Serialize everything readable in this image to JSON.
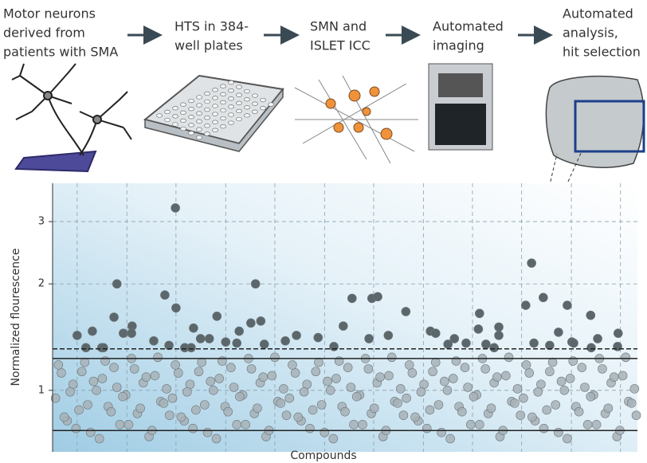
{
  "workflow": {
    "steps": [
      {
        "lines": [
          "Motor neurons",
          "derived from",
          "patients with SMA"
        ]
      },
      {
        "lines": [
          "HTS in 384-",
          "well plates"
        ]
      },
      {
        "lines": [
          "SMN and",
          "ISLET ICC"
        ]
      },
      {
        "lines": [
          "Automated",
          "imaging"
        ]
      },
      {
        "lines": [
          "Automated",
          "analysis,",
          "hit selection"
        ]
      }
    ]
  },
  "chart_data": {
    "type": "scatter",
    "x_label": "Compounds",
    "y_label": "Normalized flourescence",
    "xlim": [
      0,
      100
    ],
    "ylim": [
      0.67,
      3.85
    ],
    "log_y": true,
    "grid": true,
    "xticks": [
      4.2,
      12.7,
      21.1,
      29.6,
      38.0,
      46.5,
      54.9,
      63.4,
      71.8,
      80.2,
      88.7,
      97.1
    ],
    "yticks": [
      1,
      2,
      3
    ],
    "reference_lines": [
      {
        "value": 1.31,
        "style": "dashed"
      },
      {
        "value": 1.23,
        "style": "solid"
      },
      {
        "value": 0.77,
        "style": "solid"
      }
    ],
    "series": [
      {
        "color": "#a7b2b7",
        "x": [
          0.5,
          1.5,
          2.5,
          3.5,
          4.5,
          5.5,
          6.5,
          7.5,
          8.5,
          9.5,
          10.5,
          11.5,
          12.5,
          13.5,
          14.5,
          15.5,
          16.5,
          17.5,
          18.5,
          19.5,
          20.5,
          21.5,
          22.5,
          23.5,
          24.5,
          25.5,
          26.5,
          27.5,
          28.5,
          29.5,
          30.5,
          31.5,
          32.5,
          33.5,
          34.5,
          35.5,
          36.5,
          37.5,
          38.5,
          39.5,
          40.5,
          41.5,
          42.5,
          43.5,
          44.5,
          45.5,
          46.5,
          47.5,
          48.5,
          49.5,
          50.5,
          51.5,
          52.5,
          53.5,
          54.5,
          55.5,
          56.5,
          57.5,
          58.5,
          59.5,
          60.5,
          61.5,
          62.5,
          63.5,
          64.5,
          65.5,
          66.5,
          67.5,
          68.5,
          69.5,
          70.5,
          71.5,
          72.5,
          73.5,
          74.5,
          75.5,
          76.5,
          77.5,
          78.5,
          79.5,
          80.5,
          81.5,
          82.5,
          83.5,
          84.5,
          85.5,
          86.5,
          87.5,
          88.5,
          89.5,
          90.5,
          91.5,
          92.5,
          93.5,
          94.5,
          95.5,
          96.5,
          97.5,
          98.5,
          99.5,
          1,
          2,
          3,
          4,
          5,
          6,
          7,
          8,
          9,
          10,
          11,
          12,
          13,
          14,
          15,
          16,
          17,
          18,
          19,
          20,
          21,
          22,
          23,
          24,
          25,
          26,
          27,
          28,
          29,
          30,
          31,
          32,
          33,
          34,
          35,
          36,
          37,
          38,
          39,
          40,
          41,
          42,
          43,
          44,
          45,
          46,
          47,
          48,
          49,
          50,
          51,
          52,
          53,
          54,
          55,
          56,
          57,
          58,
          59,
          60,
          61,
          62,
          63,
          64,
          65,
          66,
          67,
          68,
          69,
          70,
          71,
          72,
          73,
          74,
          75,
          76,
          77,
          78,
          79,
          80,
          81,
          82,
          83,
          84,
          85,
          86,
          87,
          88,
          89,
          90,
          91,
          92,
          93,
          94,
          95,
          96,
          97,
          98,
          99,
          99.8
        ],
        "values": [
          0.95,
          1.12,
          0.82,
          1.04,
          0.88,
          1.2,
          0.76,
          1.0,
          1.08,
          0.9,
          1.16,
          0.8,
          0.97,
          1.23,
          0.86,
          1.05,
          0.74,
          1.1,
          0.93,
          1.01,
          0.95,
          1.12,
          0.82,
          1.04,
          0.88,
          1.2,
          0.76,
          1.0,
          1.08,
          0.9,
          1.16,
          0.8,
          0.97,
          1.23,
          0.86,
          1.05,
          0.74,
          1.1,
          0.93,
          1.01,
          0.95,
          1.12,
          0.82,
          1.04,
          0.88,
          1.2,
          0.76,
          1.0,
          1.08,
          0.9,
          1.16,
          0.8,
          0.97,
          1.23,
          0.86,
          1.05,
          0.74,
          1.1,
          0.93,
          1.01,
          0.95,
          1.12,
          0.82,
          1.04,
          0.88,
          1.2,
          0.76,
          1.0,
          1.08,
          0.9,
          1.16,
          0.8,
          0.97,
          1.23,
          0.86,
          1.05,
          0.74,
          1.1,
          0.93,
          1.01,
          0.95,
          1.12,
          0.82,
          1.04,
          0.88,
          1.2,
          0.76,
          1.0,
          1.08,
          0.9,
          1.16,
          0.8,
          0.97,
          1.23,
          0.86,
          1.05,
          0.74,
          1.1,
          0.93,
          1.01,
          1.18,
          0.84,
          0.99,
          0.78,
          1.13,
          0.91,
          1.06,
          0.73,
          1.21,
          0.87,
          1.02,
          0.96,
          0.8,
          1.15,
          0.89,
          1.09,
          0.77,
          1.24,
          0.92,
          0.85,
          1.18,
          0.84,
          0.99,
          0.78,
          1.13,
          0.91,
          1.06,
          0.73,
          1.21,
          0.87,
          1.02,
          0.96,
          0.8,
          1.15,
          0.89,
          1.09,
          0.77,
          1.24,
          0.92,
          0.85,
          1.18,
          0.84,
          0.99,
          0.78,
          1.13,
          0.91,
          1.06,
          0.73,
          1.21,
          0.87,
          1.02,
          0.96,
          0.8,
          1.15,
          0.89,
          1.09,
          0.77,
          1.24,
          0.92,
          0.85,
          1.18,
          0.84,
          0.99,
          0.78,
          1.13,
          0.91,
          1.06,
          0.73,
          1.21,
          0.87,
          1.02,
          0.96,
          0.8,
          1.15,
          0.89,
          1.09,
          0.77,
          1.24,
          0.92,
          0.85,
          1.18,
          0.84,
          0.99,
          0.78,
          1.13,
          0.91,
          1.06,
          0.73,
          1.21,
          0.87,
          1.02,
          0.96,
          0.8,
          1.15,
          0.89,
          1.09,
          0.77,
          1.24,
          0.92,
          0.85
        ]
      },
      {
        "color": "#5c676b",
        "x": [
          4.2,
          6.8,
          5.7,
          8.4,
          11.0,
          10.5,
          12.1,
          13.6,
          13.5,
          17.3,
          19.2,
          19.9,
          21.0,
          21.1,
          24.1,
          22.6,
          25.3,
          26.8,
          28.1,
          29.6,
          31.9,
          31.5,
          33.9,
          34.7,
          35.6,
          36.2,
          39.8,
          41.7,
          45.4,
          48.1,
          49.7,
          51.2,
          54.6,
          55.6,
          54.1,
          57.4,
          60.4,
          64.6,
          65.5,
          68.7,
          67.6,
          70.7,
          73.0,
          72.8,
          74.1,
          76.3,
          76.3,
          80.9,
          81.9,
          83.9,
          82.3,
          86.5,
          88.0,
          88.8,
          92.0,
          92.1,
          93.2,
          96.7,
          96.6,
          89.1,
          85.0,
          75.5,
          8.7,
          23.7
        ],
        "values": [
          1.43,
          1.47,
          1.32,
          1.32,
          2.0,
          1.61,
          1.45,
          1.52,
          1.45,
          1.38,
          1.86,
          1.34,
          3.28,
          1.71,
          1.5,
          1.32,
          1.4,
          1.4,
          1.62,
          1.37,
          1.47,
          1.36,
          1.55,
          2.0,
          1.57,
          1.35,
          1.38,
          1.43,
          1.41,
          1.33,
          1.52,
          1.82,
          1.82,
          1.84,
          1.4,
          1.43,
          1.67,
          1.47,
          1.45,
          1.4,
          1.35,
          1.36,
          1.65,
          1.49,
          1.35,
          1.51,
          1.43,
          1.74,
          2.29,
          1.83,
          1.36,
          1.46,
          1.74,
          1.37,
          1.63,
          1.32,
          1.4,
          1.45,
          1.33,
          1.36,
          1.34,
          1.32,
          1.32,
          1.32
        ]
      }
    ]
  }
}
